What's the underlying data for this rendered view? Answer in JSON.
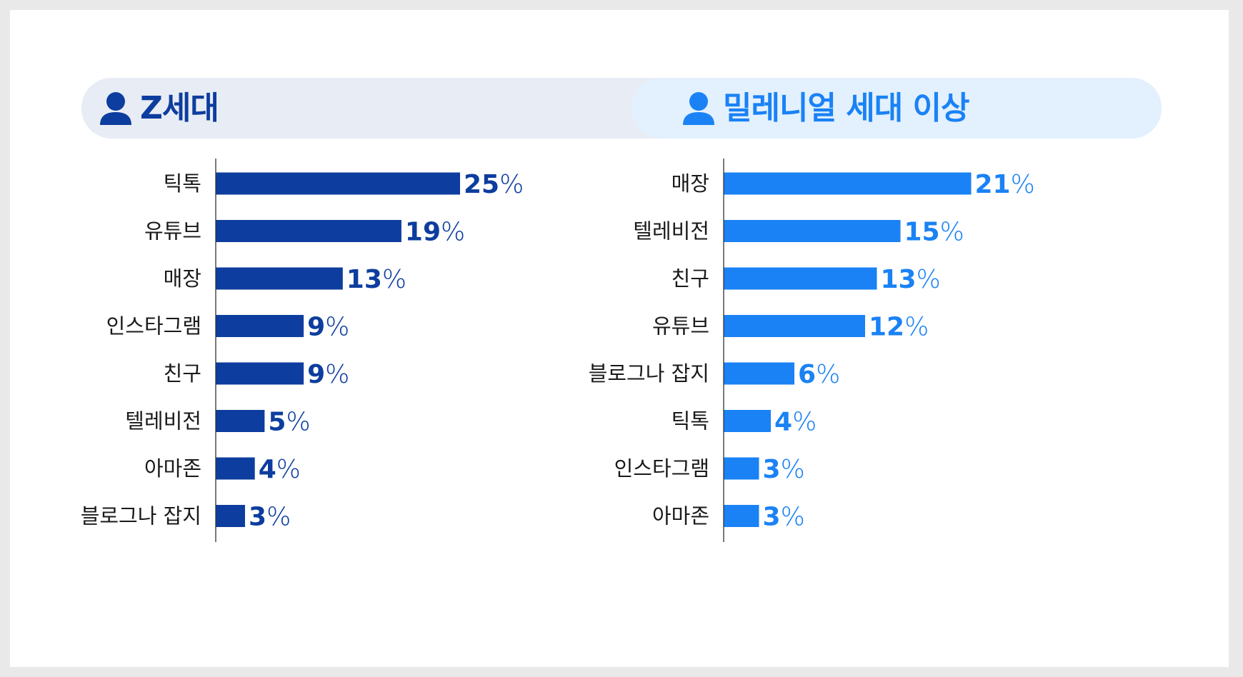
{
  "colors": {
    "zgen": "#0d3d9e",
    "millennial": "#1a82f5",
    "axis": "#333333",
    "label": "#1a1a1a"
  },
  "icons": {
    "group_icon": "person-icon"
  },
  "headers": {
    "left": "Z세대",
    "right": "밀레니얼 세대 이상"
  },
  "chart_data": [
    {
      "type": "bar",
      "orientation": "horizontal",
      "title": "Z세대",
      "categories": [
        "틱톡",
        "유튜브",
        "매장",
        "인스타그램",
        "친구",
        "텔레비전",
        "아마존",
        "블로그나 잡지"
      ],
      "values": [
        25,
        19,
        13,
        9,
        9,
        5,
        4,
        3
      ],
      "value_suffix": "%",
      "color": "#0d3d9e",
      "xlim": [
        0,
        25
      ],
      "grid": false
    },
    {
      "type": "bar",
      "orientation": "horizontal",
      "title": "밀레니얼 세대 이상",
      "categories": [
        "매장",
        "텔레비전",
        "친구",
        "유튜브",
        "블로그나 잡지",
        "틱톡",
        "인스타그램",
        "아마존"
      ],
      "values": [
        21,
        15,
        13,
        12,
        6,
        4,
        3,
        3
      ],
      "value_suffix": "%",
      "color": "#1a82f5",
      "xlim": [
        0,
        21
      ],
      "grid": false
    }
  ]
}
